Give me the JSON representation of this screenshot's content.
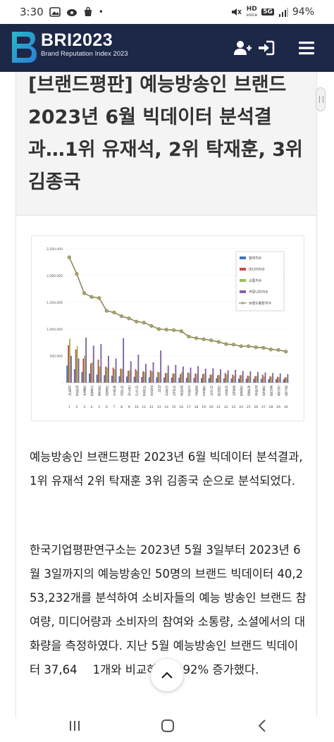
{
  "status_bar": {
    "time": "3:30",
    "dot": "•",
    "hd_label": "HD",
    "voice_label": "voice",
    "network": "5G",
    "battery": "94%"
  },
  "header": {
    "logo_title": "BRI2023",
    "logo_subtitle": "Brand Reputation Index 2023",
    "icons": [
      "add-user-icon",
      "login-icon",
      "menu-icon"
    ],
    "colors": {
      "background": "#1d2748",
      "logo_accent": "#2ab7c9"
    }
  },
  "article": {
    "title": "[브랜드평판] 예능방송인 브랜드 2023년 6월 빅데이터 분석결과…1위 유재석, 2위 탁재훈, 3위 김종국",
    "paragraph1": "예능방송인 브랜드평판 2023년 6월 빅데이터 분석결과, 1위 유재석 2위 탁재훈 3위 김종국 순으로 분석되었다.",
    "paragraph2": "한국기업평판연구소는 2023년 5월 3일부터 2023년 6월 3일까지의 예능방송인 50명의 브랜드 빅데이터 40,253,232개를 분석하여 소비자들의 예능 방송인 브랜드 참여량, 미디어량과 소비자의 참여와 소통량, 소셜에서의 대화량을 측정하였다. 지난 5월 예능방송인 브랜드 빅데이터 37,64",
    "paragraph2_tail": "1개와 비교하면 6.92% 증가했다."
  },
  "chart_data": {
    "type": "bar",
    "ylim": [
      0,
      2500000
    ],
    "y_ticks": [
      "2,500,000",
      "2,000,000",
      "1,500,000",
      "1,000,000",
      "500,000",
      "-"
    ],
    "categories": [
      "유재석",
      "탁재훈",
      "김종국",
      "신동엽",
      "강호동",
      "김동현",
      "박명수",
      "이상민",
      "김구라",
      "이수근",
      "서장훈",
      "전현무",
      "하하",
      "이경규",
      "이은지",
      "양세형",
      "조세호",
      "정형돈",
      "김준호",
      "이수지",
      "김희철",
      "이용진",
      "정준하",
      "김영철",
      "허경환",
      "문세윤",
      "김준현",
      "홍진경",
      "김신영",
      "장도연"
    ],
    "rank_labels": [
      "1",
      "2",
      "3",
      "4",
      "5",
      "6",
      "7",
      "8",
      "9",
      "10",
      "11",
      "12",
      "13",
      "14",
      "15",
      "16",
      "17",
      "18",
      "19",
      "20",
      "21",
      "22",
      "23",
      "24",
      "25",
      "26",
      "27",
      "28",
      "29",
      "30"
    ],
    "series": [
      {
        "name": "참여지수",
        "color": "#4472c4",
        "values": [
          320000,
          250000,
          200000,
          170000,
          150000,
          140000,
          130000,
          120000,
          115000,
          110000,
          105000,
          100000,
          98000,
          96000,
          94000,
          92000,
          90000,
          88000,
          86000,
          84000,
          82000,
          80000,
          78000,
          76000,
          74000,
          72000,
          70000,
          68000,
          66000,
          64000
        ]
      },
      {
        "name": "미디어지수",
        "color": "#c0504d",
        "values": [
          700000,
          620000,
          450000,
          360000,
          430000,
          300000,
          280000,
          260000,
          220000,
          250000,
          210000,
          230000,
          200000,
          180000,
          170000,
          160000,
          190000,
          170000,
          160000,
          150000,
          140000,
          180000,
          150000,
          140000,
          130000,
          120000,
          150000,
          120000,
          110000,
          100000
        ]
      },
      {
        "name": "소통지수",
        "color": "#9bbb59",
        "values": [
          820000,
          680000,
          500000,
          380000,
          300000,
          280000,
          250000,
          260000,
          230000,
          220000,
          200000,
          210000,
          190000,
          180000,
          170000,
          200000,
          175000,
          160000,
          170000,
          150000,
          140000,
          150000,
          130000,
          140000,
          120000,
          125000,
          115000,
          110000,
          100000,
          95000
        ]
      },
      {
        "name": "커뮤니티지수",
        "color": "#8064a2",
        "values": [
          500000,
          450000,
          840000,
          690000,
          720000,
          500000,
          450000,
          830000,
          400000,
          520000,
          350000,
          380000,
          600000,
          320000,
          330000,
          300000,
          280000,
          310000,
          260000,
          270000,
          250000,
          230000,
          240000,
          220000,
          210000,
          200000,
          190000,
          180000,
          170000,
          160000
        ]
      },
      {
        "name": "브랜드평판지수",
        "color": "#8c8a5c",
        "values": [
          2340000,
          2030000,
          1670000,
          1600000,
          1580000,
          1340000,
          1310000,
          1240000,
          1200000,
          1140000,
          1120000,
          1060000,
          1000000,
          990000,
          980000,
          960000,
          860000,
          830000,
          810000,
          790000,
          760000,
          720000,
          710000,
          680000,
          680000,
          660000,
          650000,
          620000,
          610000,
          580000
        ]
      }
    ]
  }
}
